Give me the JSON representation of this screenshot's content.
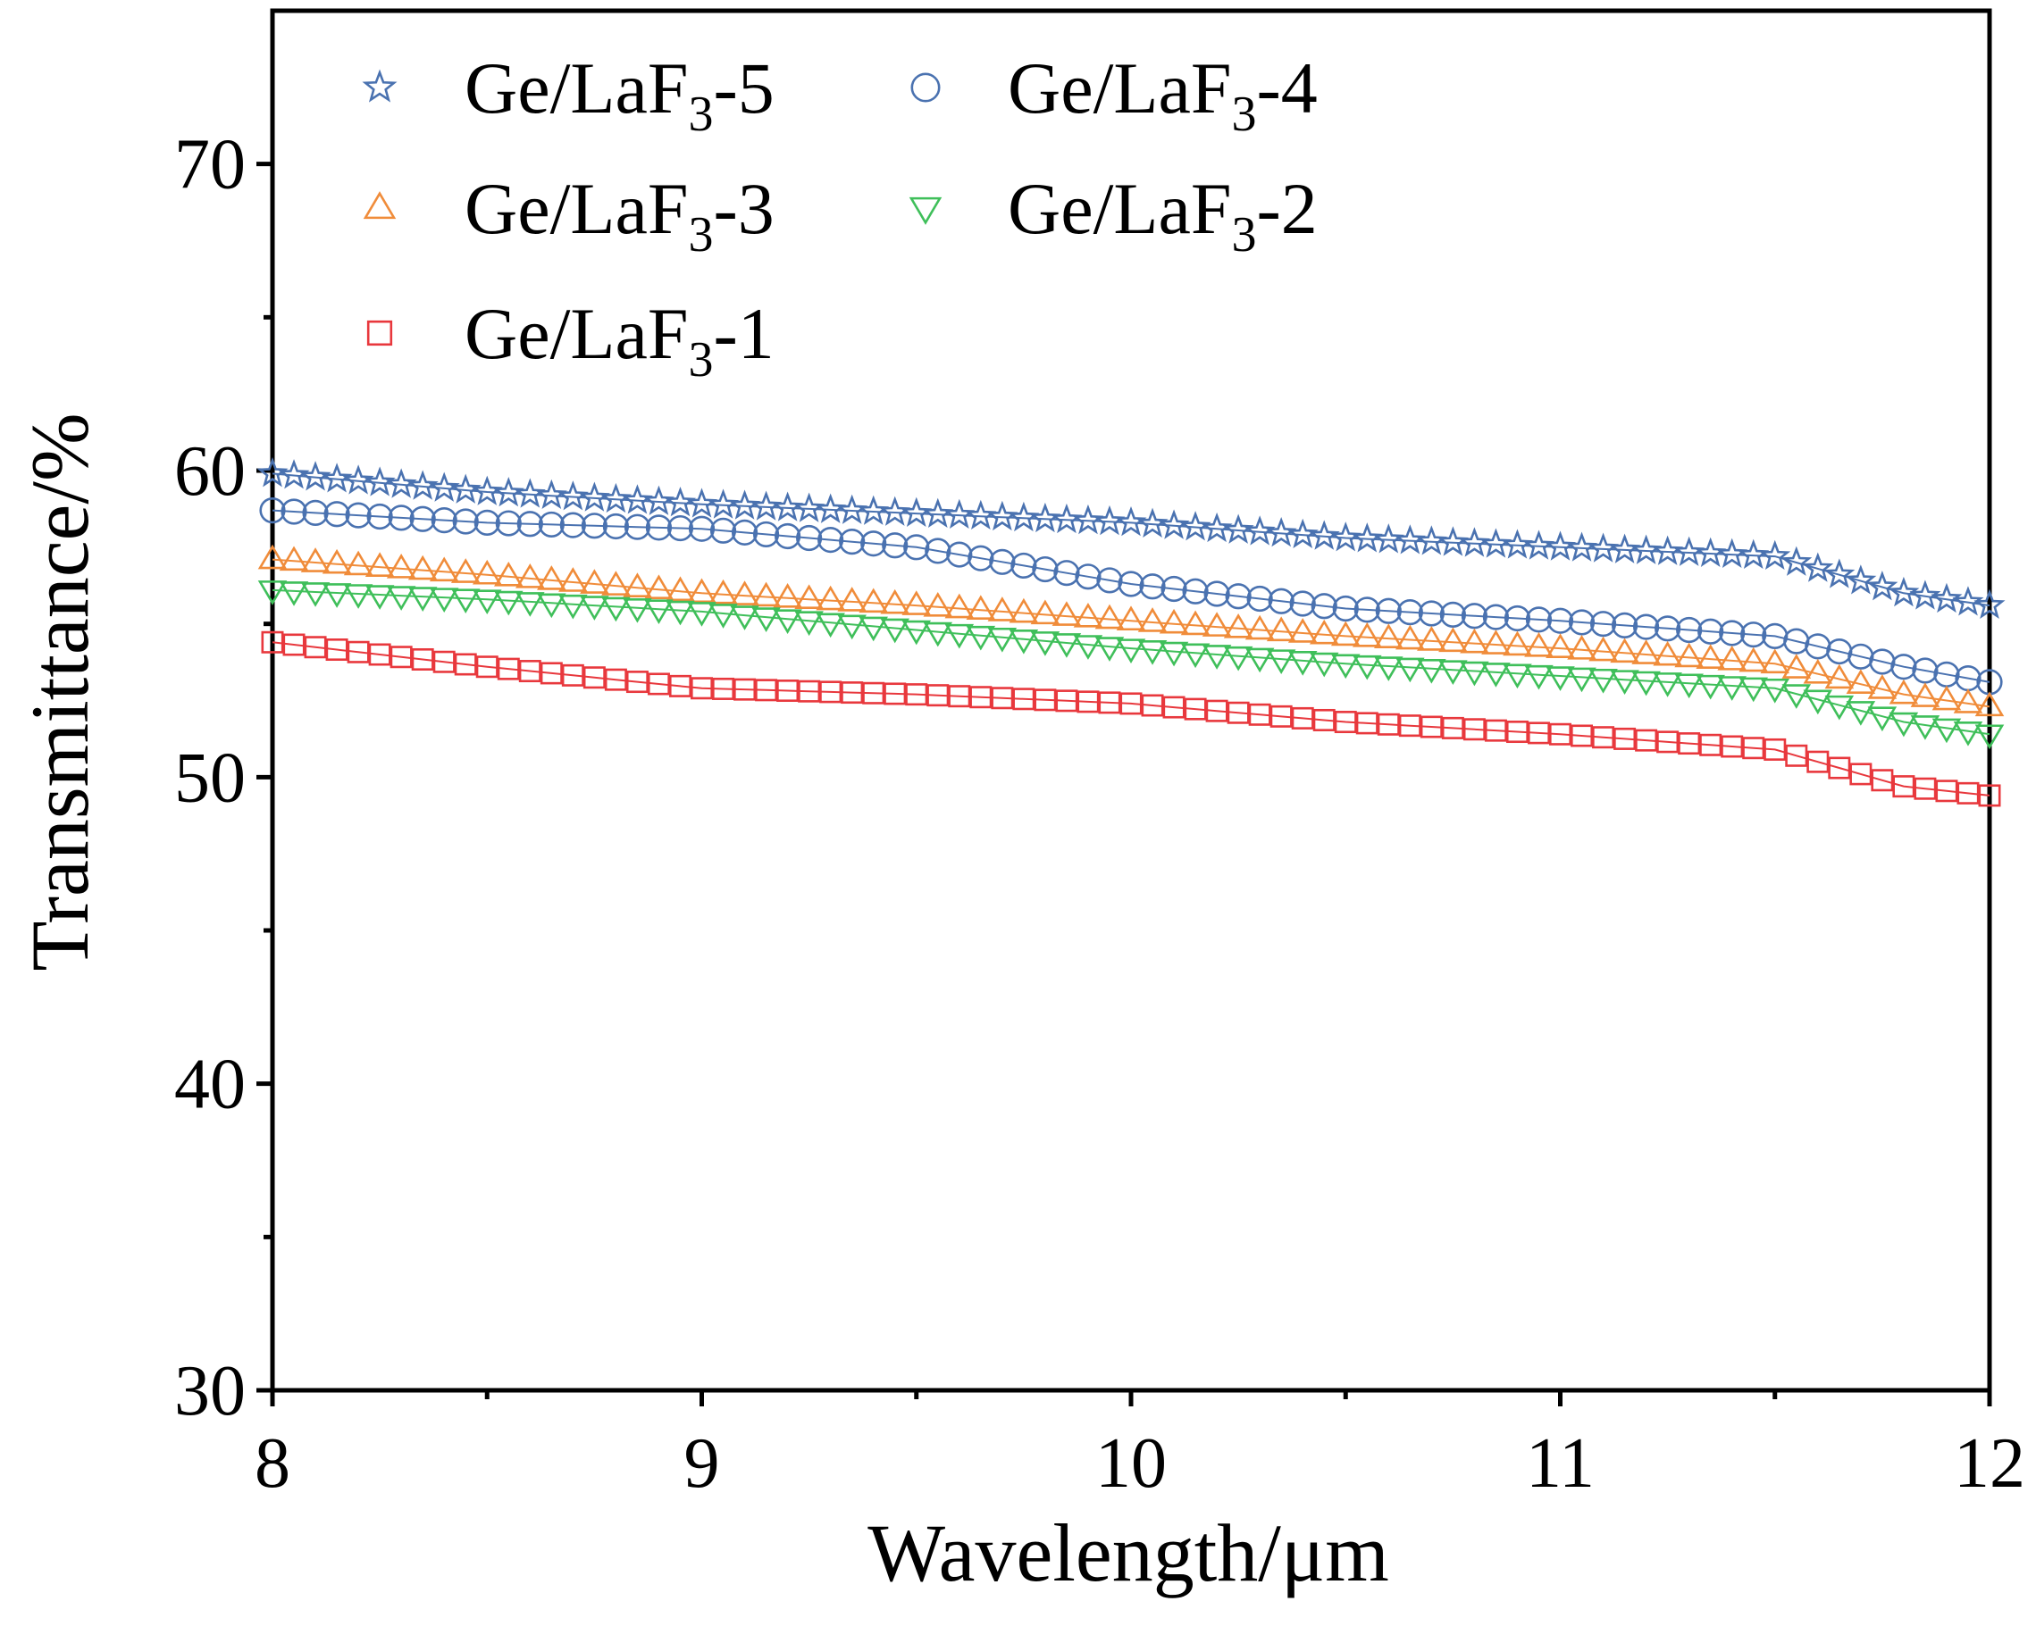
{
  "chart_data": {
    "type": "scatter",
    "xlabel": "Wavelength/μm",
    "ylabel": "Transmittance/%",
    "xlim": [
      8,
      12
    ],
    "ylim": [
      30,
      75
    ],
    "x_ticks": [
      "8",
      "9",
      "10",
      "11",
      "12"
    ],
    "y_ticks": [
      "30",
      "40",
      "50",
      "60",
      "70"
    ],
    "legend_position": "top-left",
    "series": [
      {
        "name": "Ge/LaF3-5",
        "legend_text": {
          "base": "Ge/LaF",
          "sub": "3",
          "suffix": "-5"
        },
        "marker": "star",
        "color": "#4a72b0",
        "x": [
          8.0,
          8.5,
          9.0,
          9.5,
          10.0,
          10.5,
          11.0,
          11.5,
          11.8,
          12.0
        ],
        "y": [
          59.9,
          59.3,
          58.9,
          58.6,
          58.3,
          57.8,
          57.5,
          57.2,
          56.0,
          55.6
        ]
      },
      {
        "name": "Ge/LaF3-4",
        "legend_text": {
          "base": "Ge/LaF",
          "sub": "3",
          "suffix": "-4"
        },
        "marker": "circle",
        "color": "#4a72b0",
        "x": [
          8.0,
          8.5,
          9.0,
          9.5,
          10.0,
          10.5,
          11.0,
          11.5,
          11.8,
          12.0
        ],
        "y": [
          58.7,
          58.3,
          58.1,
          57.5,
          56.3,
          55.5,
          55.1,
          54.6,
          53.6,
          53.1
        ]
      },
      {
        "name": "Ge/LaF3-3",
        "legend_text": {
          "base": "Ge/LaF",
          "sub": "3",
          "suffix": "-3"
        },
        "marker": "triangle-up",
        "color": "#f08c3a",
        "x": [
          8.0,
          8.5,
          9.0,
          9.5,
          10.0,
          10.5,
          11.0,
          11.5,
          11.8,
          12.0
        ],
        "y": [
          57.1,
          56.6,
          56.0,
          55.6,
          55.1,
          54.6,
          54.2,
          53.7,
          52.7,
          52.3
        ]
      },
      {
        "name": "Ge/LaF3-2",
        "legend_text": {
          "base": "Ge/LaF",
          "sub": "3",
          "suffix": "-2"
        },
        "marker": "triangle-down",
        "color": "#3fbf5a",
        "x": [
          8.0,
          8.5,
          9.0,
          9.5,
          10.0,
          10.5,
          11.0,
          11.5,
          11.8,
          12.0
        ],
        "y": [
          56.1,
          55.8,
          55.4,
          54.8,
          54.2,
          53.7,
          53.3,
          52.9,
          51.8,
          51.4
        ]
      },
      {
        "name": "Ge/LaF3-1",
        "legend_text": {
          "base": "Ge/LaF",
          "sub": "3",
          "suffix": "-1"
        },
        "marker": "square",
        "color": "#e8383d",
        "x": [
          8.0,
          8.5,
          9.0,
          9.5,
          10.0,
          10.5,
          11.0,
          11.5,
          11.8,
          12.0
        ],
        "y": [
          54.4,
          53.6,
          52.9,
          52.7,
          52.4,
          51.8,
          51.4,
          50.9,
          49.7,
          49.4
        ]
      }
    ]
  }
}
